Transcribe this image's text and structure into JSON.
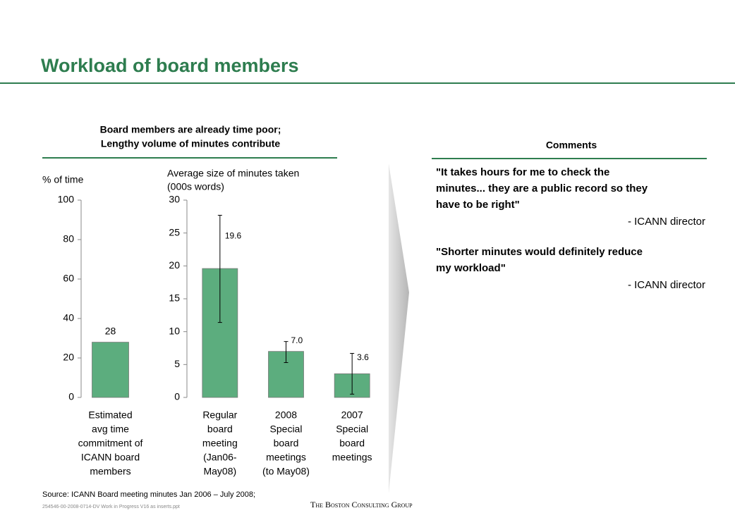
{
  "slide": {
    "title": "Workload of board members",
    "left_header": [
      "Board members are already time poor;",
      "Lengthy volume of minutes contribute"
    ],
    "right_header": "Comments",
    "comments": [
      {
        "lines": [
          "\"It takes hours for me to check the",
          "minutes... they are a public record so they",
          "have to be right\""
        ],
        "author": "- ICANN director"
      },
      {
        "lines": [
          "\"Shorter minutes would definitely reduce",
          "my workload\""
        ],
        "author": "- ICANN director"
      }
    ],
    "source": "Source: ICANN Board meeting minutes Jan 2006 – July 2008;",
    "file": "254546-00-2008-0714-DV Work in Progress V16 as inserts.ppt",
    "company": "The Boston Consulting Group"
  },
  "chart_data": [
    {
      "type": "bar",
      "ylabel": [
        "% of time"
      ],
      "categories": [
        [
          "Estimated",
          "avg time",
          "commitment of",
          "ICANN board",
          "members"
        ]
      ],
      "values": [
        28
      ],
      "color": "#5cad7e",
      "ylim": [
        0,
        100
      ],
      "yticks": [
        0,
        20,
        40,
        60,
        80,
        100
      ]
    },
    {
      "type": "bar",
      "ylabel": [
        "Average size of minutes taken",
        "(000s words)"
      ],
      "categories": [
        [
          "Regular",
          "board",
          "meeting",
          "(Jan06-",
          "May08)"
        ],
        [
          "2008",
          "Special",
          "board",
          "meetings",
          "(to May08)"
        ],
        [
          "2007",
          "Special",
          "board",
          "meetings"
        ]
      ],
      "values": [
        19.6,
        7.0,
        3.6
      ],
      "value_labels": [
        "19.6",
        "7.0",
        "3.6"
      ],
      "error_bars": [
        [
          11.4,
          27.7
        ],
        [
          5.3,
          8.5
        ],
        [
          0.5,
          6.7
        ]
      ],
      "color": "#5cad7e",
      "ylim": [
        0,
        30
      ],
      "yticks": [
        0,
        5,
        10,
        15,
        20,
        25,
        30
      ]
    }
  ]
}
